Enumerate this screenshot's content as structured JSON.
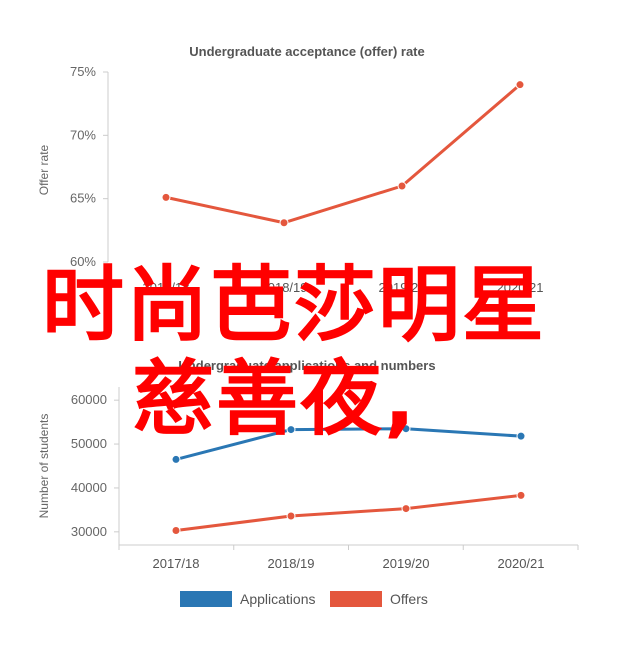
{
  "chart_data": [
    {
      "type": "line",
      "title": "Undergraduate acceptance (offer) rate",
      "ylabel": "Offer rate",
      "xlabel": "",
      "categories": [
        "2017/18",
        "2018/19",
        "2019/20",
        "2020/21"
      ],
      "ylim": [
        60,
        75
      ],
      "yticks": [
        "60%",
        "65%",
        "70%",
        "75%"
      ],
      "ytick_values": [
        60,
        65,
        70,
        75
      ],
      "series": [
        {
          "name": "",
          "color": "#e4573d",
          "values": [
            65.1,
            63.1,
            66.0,
            74.0
          ]
        }
      ],
      "grid": false
    },
    {
      "type": "line",
      "title": "Undergraduate applications and numbers",
      "ylabel": "Number of students",
      "xlabel": "",
      "categories": [
        "2017/18",
        "2018/19",
        "2019/20",
        "2020/21"
      ],
      "ylim": [
        27000,
        63000
      ],
      "yticks": [
        "30000",
        "40000",
        "50000",
        "60000"
      ],
      "ytick_values": [
        30000,
        40000,
        50000,
        60000
      ],
      "series": [
        {
          "name": "Applications",
          "color": "#2a77b4",
          "values": [
            46500,
            53300,
            53500,
            51800
          ]
        },
        {
          "name": "Offers",
          "color": "#e4573d",
          "values": [
            30300,
            33600,
            35300,
            38300
          ]
        }
      ],
      "legend": {
        "position": "bottom"
      },
      "grid": false
    }
  ],
  "overlay": {
    "line1": "时尚芭莎明星",
    "line2": "慈善夜,"
  }
}
